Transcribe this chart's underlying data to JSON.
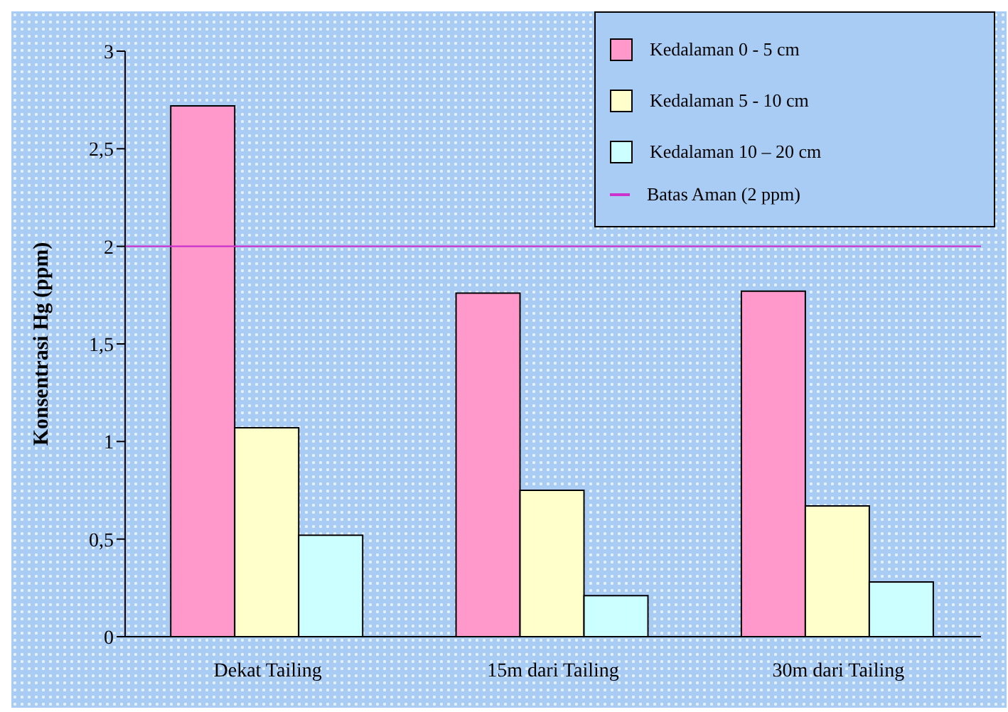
{
  "chart_data": {
    "type": "bar",
    "ylabel": "Konsentrasi Hg (ppm)",
    "categories": [
      "Dekat Tailing",
      "15m dari Tailing",
      "30m dari Tailing"
    ],
    "series": [
      {
        "name": "Kedalaman 0 - 5 cm",
        "color": "#ff99cc",
        "values": [
          2.72,
          1.76,
          1.77
        ]
      },
      {
        "name": "Kedalaman 5 - 10 cm",
        "color": "#ffffcc",
        "values": [
          1.07,
          0.75,
          0.67
        ]
      },
      {
        "name": "Kedalaman 10 – 20 cm",
        "color": "#ccffff",
        "values": [
          0.52,
          0.21,
          0.28
        ]
      }
    ],
    "ylim": [
      0,
      3
    ],
    "yticks": [
      0,
      {
        "value": 0.5,
        "label": "0,5"
      },
      1,
      {
        "value": 1.5,
        "label": "1,5"
      },
      2,
      {
        "value": 2.5,
        "label": "2,5"
      },
      3
    ],
    "ref_lines": [
      {
        "axis": "y",
        "value": 2,
        "label": "Batas Aman (2 ppm)",
        "color": "#cc33cc"
      }
    ],
    "legend": "top right",
    "grid": false
  }
}
